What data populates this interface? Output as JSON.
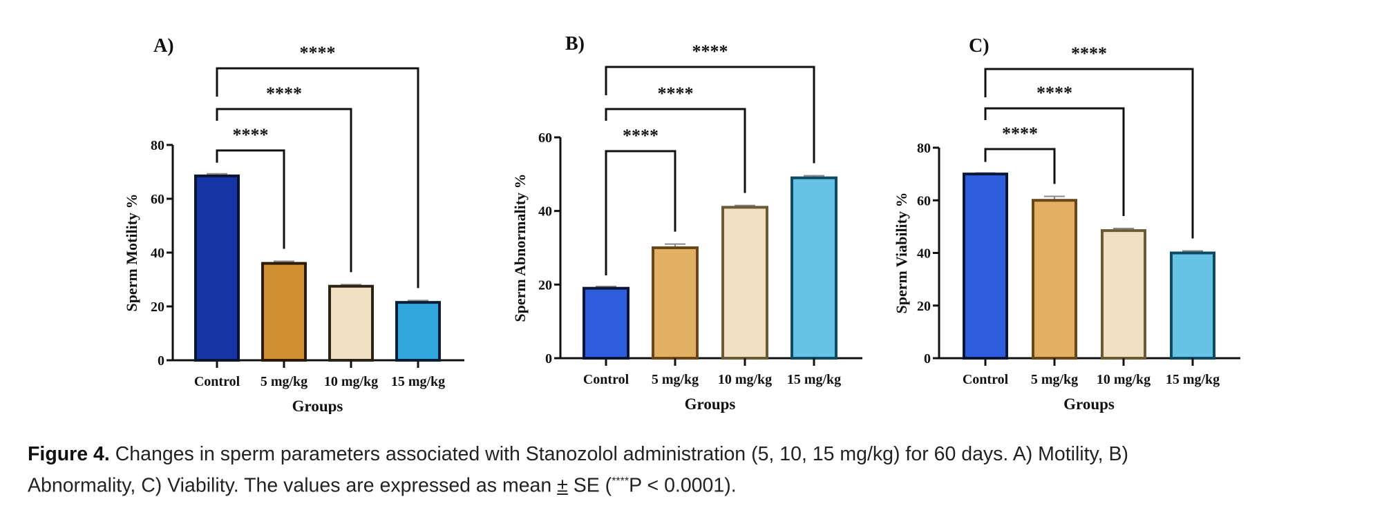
{
  "figure_label": "Figure 4.",
  "caption_line1_rest": " Changes in sperm parameters associated with Stanozolol administration (5, 10, 15 mg/kg) for 60 days. A) Motility, B)",
  "caption_line2_a": "Abnormality, C) Viability. The values are expressed as mean ",
  "caption_pm": "±",
  "caption_line2_b": " SE (",
  "caption_stars": "****",
  "caption_line2_c": "P < 0.0001).",
  "colors": {
    "control_a": "#1535a6",
    "control_bc": "#2e5ede",
    "mg5_a": "#d18f33",
    "mg5_bc": "#e2b063",
    "mg10": "#f0dfc0",
    "mg15_a": "#31a6dd",
    "mg15_bc": "#66c3e6"
  },
  "chart_data": [
    {
      "panel": "A)",
      "type": "bar",
      "title": "A)",
      "xlabel": "Groups",
      "ylabel": "Sperm Motility %",
      "categories": [
        "Control",
        "5 mg/kg",
        "10 mg/kg",
        "15 mg/kg"
      ],
      "values": [
        68.5,
        36,
        27.5,
        21.5
      ],
      "errors": [
        0.8,
        0.8,
        0.6,
        0.7
      ],
      "ylim": [
        0,
        80
      ],
      "yticks": [
        "0",
        "20",
        "40",
        "60",
        "80"
      ],
      "significance": [
        {
          "from": "Control",
          "to": "5 mg/kg",
          "label": "****"
        },
        {
          "from": "Control",
          "to": "10 mg/kg",
          "label": "****"
        },
        {
          "from": "Control",
          "to": "15 mg/kg",
          "label": "****"
        }
      ],
      "grid": false,
      "legend": "none"
    },
    {
      "panel": "B)",
      "type": "bar",
      "title": "B)",
      "xlabel": "Groups",
      "ylabel": "Sperm Abnormality %",
      "categories": [
        "Control",
        "5 mg/kg",
        "10 mg/kg",
        "15 mg/kg"
      ],
      "values": [
        19,
        30,
        41,
        49
      ],
      "errors": [
        0.5,
        1.0,
        0.5,
        0.6
      ],
      "ylim": [
        0,
        60
      ],
      "yticks": [
        "0",
        "20",
        "40",
        "60"
      ],
      "significance": [
        {
          "from": "Control",
          "to": "5 mg/kg",
          "label": "****"
        },
        {
          "from": "Control",
          "to": "10 mg/kg",
          "label": "****"
        },
        {
          "from": "Control",
          "to": "15 mg/kg",
          "label": "****"
        }
      ],
      "grid": false,
      "legend": "none"
    },
    {
      "panel": "C)",
      "type": "bar",
      "title": "C)",
      "xlabel": "Groups",
      "ylabel": "Sperm Viability %",
      "categories": [
        "Control",
        "5 mg/kg",
        "10 mg/kg",
        "15 mg/kg"
      ],
      "values": [
        70,
        60,
        48.5,
        40
      ],
      "errors": [
        0.4,
        1.5,
        0.8,
        0.8
      ],
      "ylim": [
        0,
        80
      ],
      "yticks": [
        "0",
        "20",
        "40",
        "60",
        "80"
      ],
      "significance": [
        {
          "from": "Control",
          "to": "5 mg/kg",
          "label": "****"
        },
        {
          "from": "Control",
          "to": "10 mg/kg",
          "label": "****"
        },
        {
          "from": "Control",
          "to": "15 mg/kg",
          "label": "****"
        }
      ],
      "grid": false,
      "legend": "none"
    }
  ]
}
